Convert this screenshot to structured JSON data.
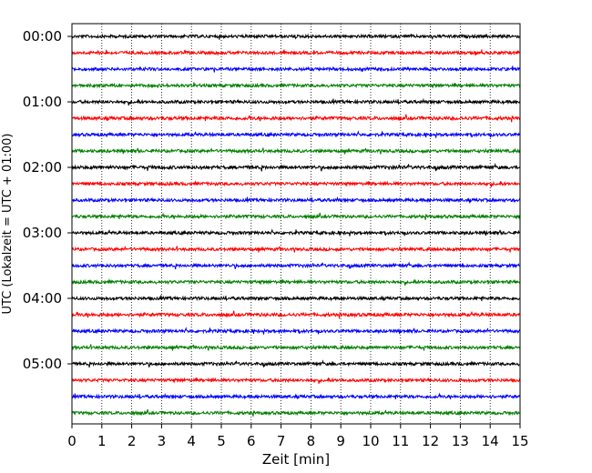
{
  "chart_data": {
    "type": "line",
    "title": "",
    "xlabel": "Zeit  [min]",
    "ylabel": "UTC (Lokalzeit = UTC + 01:00)",
    "xlim": [
      0,
      15
    ],
    "x_ticks": [
      0,
      1,
      2,
      3,
      4,
      5,
      6,
      7,
      8,
      9,
      10,
      11,
      12,
      13,
      14,
      15
    ],
    "y_tick_labels": [
      "00:00",
      "01:00",
      "02:00",
      "03:00",
      "04:00",
      "05:00"
    ],
    "y_tick_label_rows": [
      0,
      4,
      8,
      12,
      16,
      20
    ],
    "trace_minutes": 15,
    "trace_colors": [
      "#000000",
      "#ff0000",
      "#0000ff",
      "#007f00"
    ],
    "grid": {
      "vertical": "dotted",
      "horizontal": "none"
    },
    "legend": "none",
    "traces": [
      {
        "start": "00:00",
        "color": "#000000",
        "amplitude": 1.0
      },
      {
        "start": "00:15",
        "color": "#ff0000",
        "amplitude": 1.0
      },
      {
        "start": "00:30",
        "color": "#0000ff",
        "amplitude": 1.0
      },
      {
        "start": "00:45",
        "color": "#007f00",
        "amplitude": 1.0
      },
      {
        "start": "01:00",
        "color": "#000000",
        "amplitude": 1.0
      },
      {
        "start": "01:15",
        "color": "#ff0000",
        "amplitude": 1.1
      },
      {
        "start": "01:30",
        "color": "#0000ff",
        "amplitude": 1.0
      },
      {
        "start": "01:45",
        "color": "#007f00",
        "amplitude": 1.0
      },
      {
        "start": "02:00",
        "color": "#000000",
        "amplitude": 1.1
      },
      {
        "start": "02:15",
        "color": "#ff0000",
        "amplitude": 1.0
      },
      {
        "start": "02:30",
        "color": "#0000ff",
        "amplitude": 1.0
      },
      {
        "start": "02:45",
        "color": "#007f00",
        "amplitude": 1.0
      },
      {
        "start": "03:00",
        "color": "#000000",
        "amplitude": 1.0
      },
      {
        "start": "03:15",
        "color": "#ff0000",
        "amplitude": 1.0
      },
      {
        "start": "03:30",
        "color": "#0000ff",
        "amplitude": 1.0
      },
      {
        "start": "03:45",
        "color": "#007f00",
        "amplitude": 1.0
      },
      {
        "start": "04:00",
        "color": "#000000",
        "amplitude": 1.0
      },
      {
        "start": "04:15",
        "color": "#ff0000",
        "amplitude": 1.1
      },
      {
        "start": "04:30",
        "color": "#0000ff",
        "amplitude": 1.0
      },
      {
        "start": "04:45",
        "color": "#007f00",
        "amplitude": 1.0
      },
      {
        "start": "05:00",
        "color": "#000000",
        "amplitude": 1.0
      },
      {
        "start": "05:15",
        "color": "#ff0000",
        "amplitude": 1.0
      },
      {
        "start": "05:30",
        "color": "#0000ff",
        "amplitude": 1.0
      },
      {
        "start": "05:45",
        "color": "#007f00",
        "amplitude": 1.0
      }
    ]
  }
}
